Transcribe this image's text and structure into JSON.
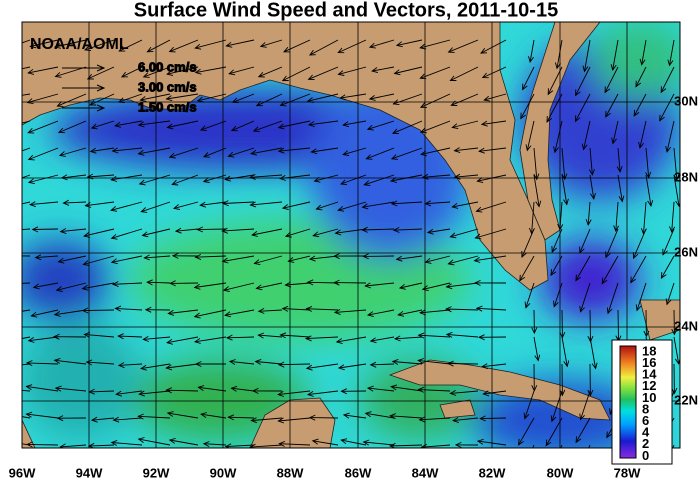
{
  "title": "Surface Wind Speed and Vectors, 2011-10-15",
  "source": "NOAA/AOML",
  "vector_legend": [
    "6.00 cm/s",
    "3.00 cm/s",
    "1.50 cm/s"
  ],
  "longitude_labels": [
    "96W",
    "94W",
    "92W",
    "90W",
    "88W",
    "86W",
    "84W",
    "82W",
    "80W",
    "78W"
  ],
  "latitude_labels": [
    "30N",
    "28N",
    "26N",
    "24N",
    "22N"
  ],
  "colorbar": {
    "ticks": [
      18,
      16,
      14,
      12,
      10,
      8,
      6,
      4,
      2,
      0
    ]
  }
}
